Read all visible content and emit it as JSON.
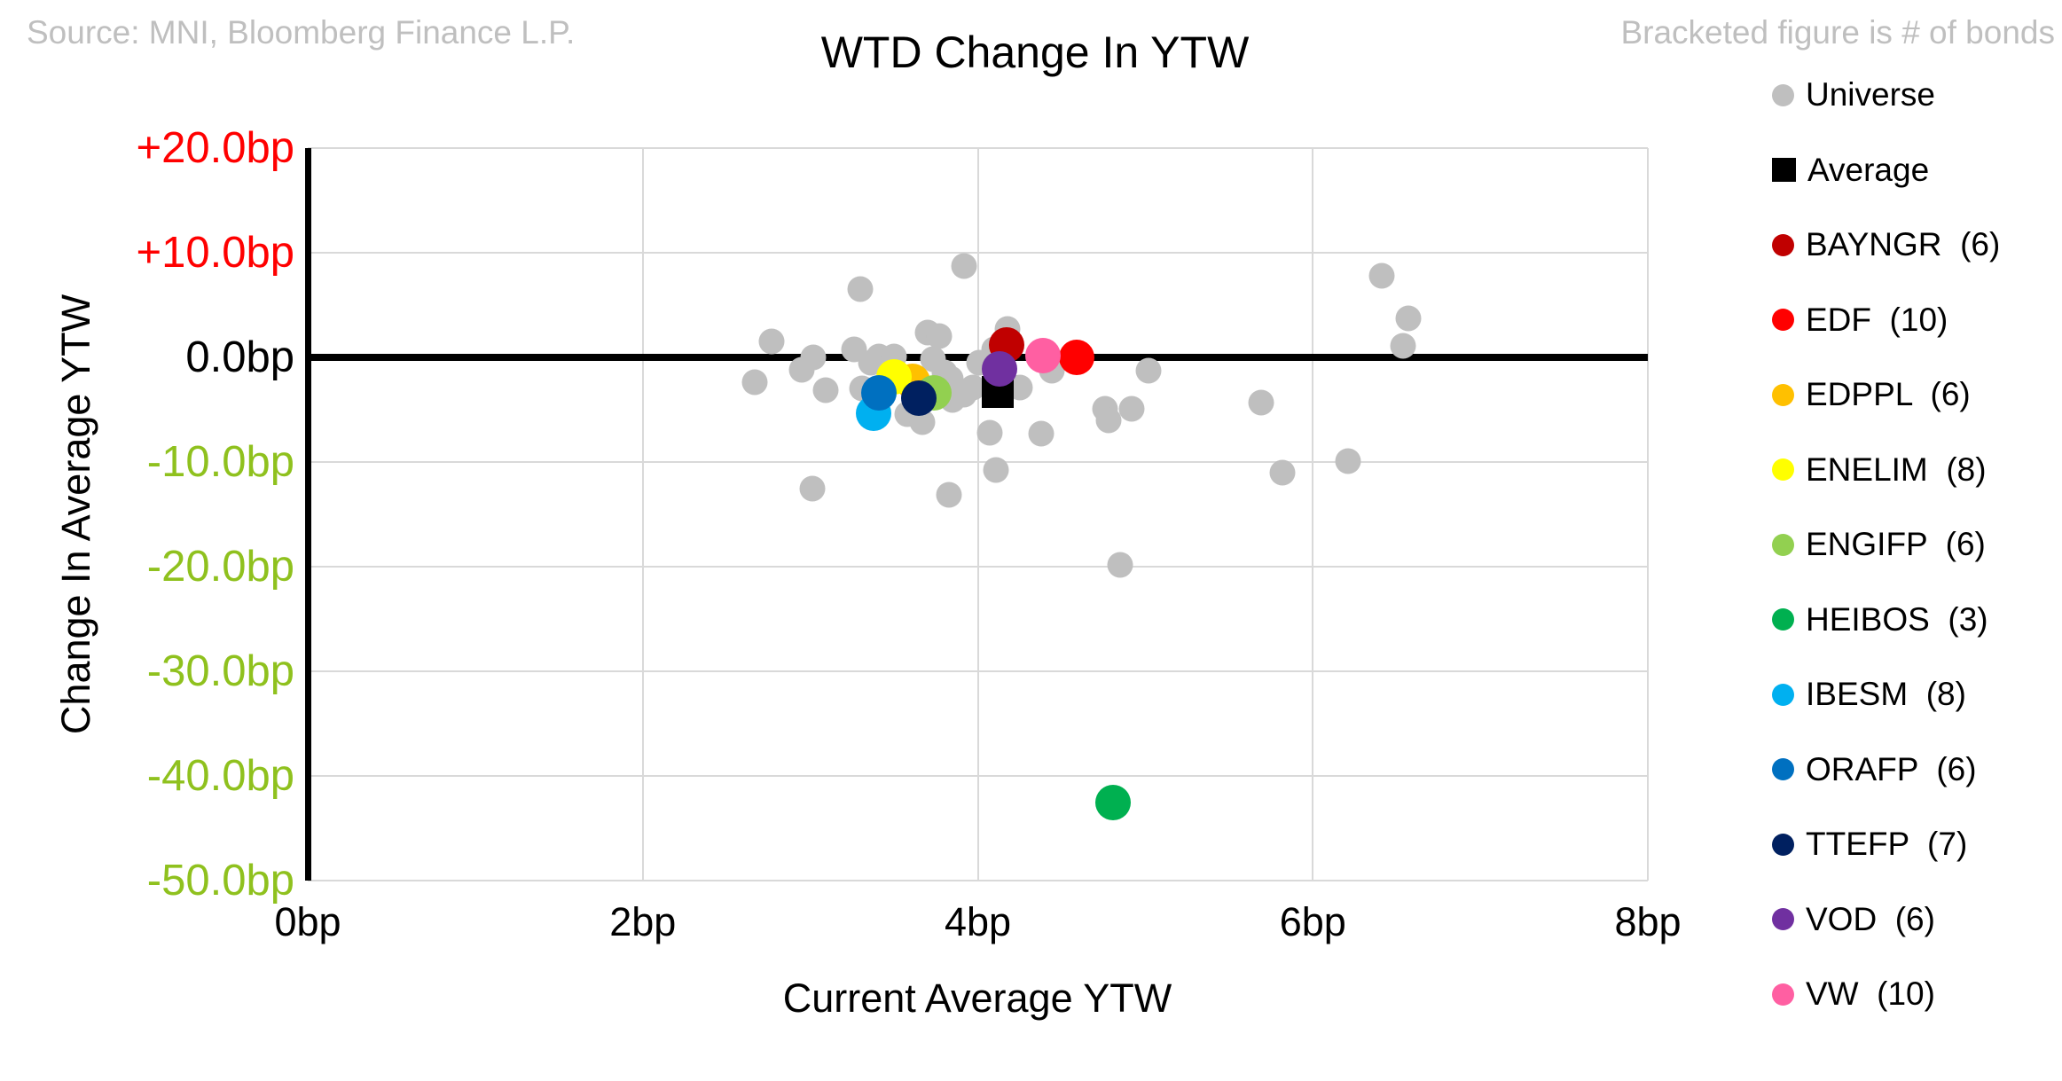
{
  "header": {
    "title": "WTD Change In YTW",
    "source_note": "Source: MNI, Bloomberg Finance L.P.",
    "bracket_note": "Bracketed figure is # of bonds"
  },
  "colors": {
    "background": "#FFFFFF",
    "gridline": "#D9D9D9",
    "axis_line": "#000000",
    "note_gray": "#BFBFBF",
    "positive_tick": "#FF0000",
    "zero_tick": "#000000",
    "negative_tick": "#8FC11E"
  },
  "chart_data": {
    "type": "scatter",
    "title": "WTD Change In YTW",
    "xlabel": "Current Average YTW",
    "ylabel": "Change In Average YTW",
    "xlim": [
      0,
      8
    ],
    "ylim": [
      -50,
      20
    ],
    "grid": true,
    "legend_position": "right",
    "x_ticks": [
      {
        "label": "0bp",
        "value": 0
      },
      {
        "label": "2bp",
        "value": 2
      },
      {
        "label": "4bp",
        "value": 4
      },
      {
        "label": "6bp",
        "value": 6
      },
      {
        "label": "8bp",
        "value": 8
      }
    ],
    "y_ticks": [
      {
        "label": "+20.0bp",
        "value": 20,
        "color": "#FF0000"
      },
      {
        "label": "+10.0bp",
        "value": 10,
        "color": "#FF0000"
      },
      {
        "label": "0.0bp",
        "value": 0,
        "color": "#000000"
      },
      {
        "label": "-10.0bp",
        "value": -10,
        "color": "#8FC11E"
      },
      {
        "label": "-20.0bp",
        "value": -20,
        "color": "#8FC11E"
      },
      {
        "label": "-30.0bp",
        "value": -30,
        "color": "#8FC11E"
      },
      {
        "label": "-40.0bp",
        "value": -40,
        "color": "#8FC11E"
      },
      {
        "label": "-50.0bp",
        "value": -50,
        "color": "#8FC11E"
      }
    ],
    "series": [
      {
        "name": "Universe",
        "count": null,
        "color": "#BFBFBF",
        "marker": "circle",
        "size": 29,
        "points": [
          [
            2.67,
            -2.4
          ],
          [
            2.77,
            1.5
          ],
          [
            2.95,
            -1.2
          ],
          [
            3.01,
            -12.5
          ],
          [
            3.02,
            0.0
          ],
          [
            3.09,
            -3.1
          ],
          [
            3.26,
            0.8
          ],
          [
            3.3,
            6.5
          ],
          [
            3.31,
            -3.0
          ],
          [
            3.36,
            -0.5
          ],
          [
            3.41,
            0.1
          ],
          [
            3.5,
            0.1
          ],
          [
            3.58,
            -5.4
          ],
          [
            3.67,
            -6.2
          ],
          [
            3.7,
            2.4
          ],
          [
            3.73,
            -0.2
          ],
          [
            3.77,
            2.0
          ],
          [
            3.8,
            -1.4
          ],
          [
            3.83,
            -13.1
          ],
          [
            3.84,
            -2.0
          ],
          [
            3.85,
            -4.1
          ],
          [
            3.92,
            8.7
          ],
          [
            3.92,
            -3.6
          ],
          [
            3.97,
            -2.9
          ],
          [
            4.01,
            -0.5
          ],
          [
            4.07,
            -7.2
          ],
          [
            4.1,
            0.8
          ],
          [
            4.11,
            -10.8
          ],
          [
            4.18,
            2.7
          ],
          [
            4.25,
            -2.9
          ],
          [
            4.38,
            -7.3
          ],
          [
            4.44,
            -1.3
          ],
          [
            4.76,
            -4.9
          ],
          [
            4.78,
            -6.0
          ],
          [
            4.85,
            -19.8
          ],
          [
            4.92,
            -4.9
          ],
          [
            5.02,
            -1.3
          ],
          [
            5.69,
            -4.3
          ],
          [
            5.82,
            -11.0
          ],
          [
            6.21,
            -9.9
          ],
          [
            6.41,
            7.8
          ],
          [
            6.54,
            1.1
          ],
          [
            6.57,
            3.7
          ]
        ]
      },
      {
        "name": "Average",
        "count": null,
        "color": "#000000",
        "marker": "square",
        "size": 36,
        "points": [
          [
            4.12,
            -3.3
          ]
        ]
      },
      {
        "name": "BAYNGR",
        "count": 6,
        "color": "#C00000",
        "marker": "circle",
        "size": 40,
        "points": [
          [
            4.17,
            1.2
          ]
        ]
      },
      {
        "name": "EDF",
        "count": 10,
        "color": "#FF0000",
        "marker": "circle",
        "size": 40,
        "points": [
          [
            4.59,
            0.0
          ]
        ]
      },
      {
        "name": "EDPPL",
        "count": 6,
        "color": "#FFC000",
        "marker": "circle",
        "size": 40,
        "points": [
          [
            3.61,
            -2.3
          ]
        ]
      },
      {
        "name": "ENELIM",
        "count": 8,
        "color": "#FFFF00",
        "marker": "circle",
        "size": 40,
        "points": [
          [
            3.5,
            -1.9
          ]
        ]
      },
      {
        "name": "ENGIFP",
        "count": 6,
        "color": "#92D050",
        "marker": "circle",
        "size": 40,
        "points": [
          [
            3.74,
            -3.4
          ]
        ]
      },
      {
        "name": "HEIBOS",
        "count": 3,
        "color": "#00B050",
        "marker": "circle",
        "size": 40,
        "points": [
          [
            4.81,
            -42.5
          ]
        ]
      },
      {
        "name": "IBESM",
        "count": 8,
        "color": "#00B0F0",
        "marker": "circle",
        "size": 40,
        "points": [
          [
            3.38,
            -5.3
          ]
        ]
      },
      {
        "name": "ORAFP",
        "count": 6,
        "color": "#0070C0",
        "marker": "circle",
        "size": 40,
        "points": [
          [
            3.41,
            -3.4
          ]
        ]
      },
      {
        "name": "TTEFP",
        "count": 7,
        "color": "#002060",
        "marker": "circle",
        "size": 40,
        "points": [
          [
            3.65,
            -3.9
          ]
        ]
      },
      {
        "name": "VOD",
        "count": 6,
        "color": "#7030A0",
        "marker": "circle",
        "size": 40,
        "points": [
          [
            4.13,
            -1.1
          ]
        ]
      },
      {
        "name": "VW",
        "count": 10,
        "color": "#FF5FA2",
        "marker": "circle",
        "size": 40,
        "points": [
          [
            4.39,
            0.2
          ]
        ]
      }
    ]
  }
}
